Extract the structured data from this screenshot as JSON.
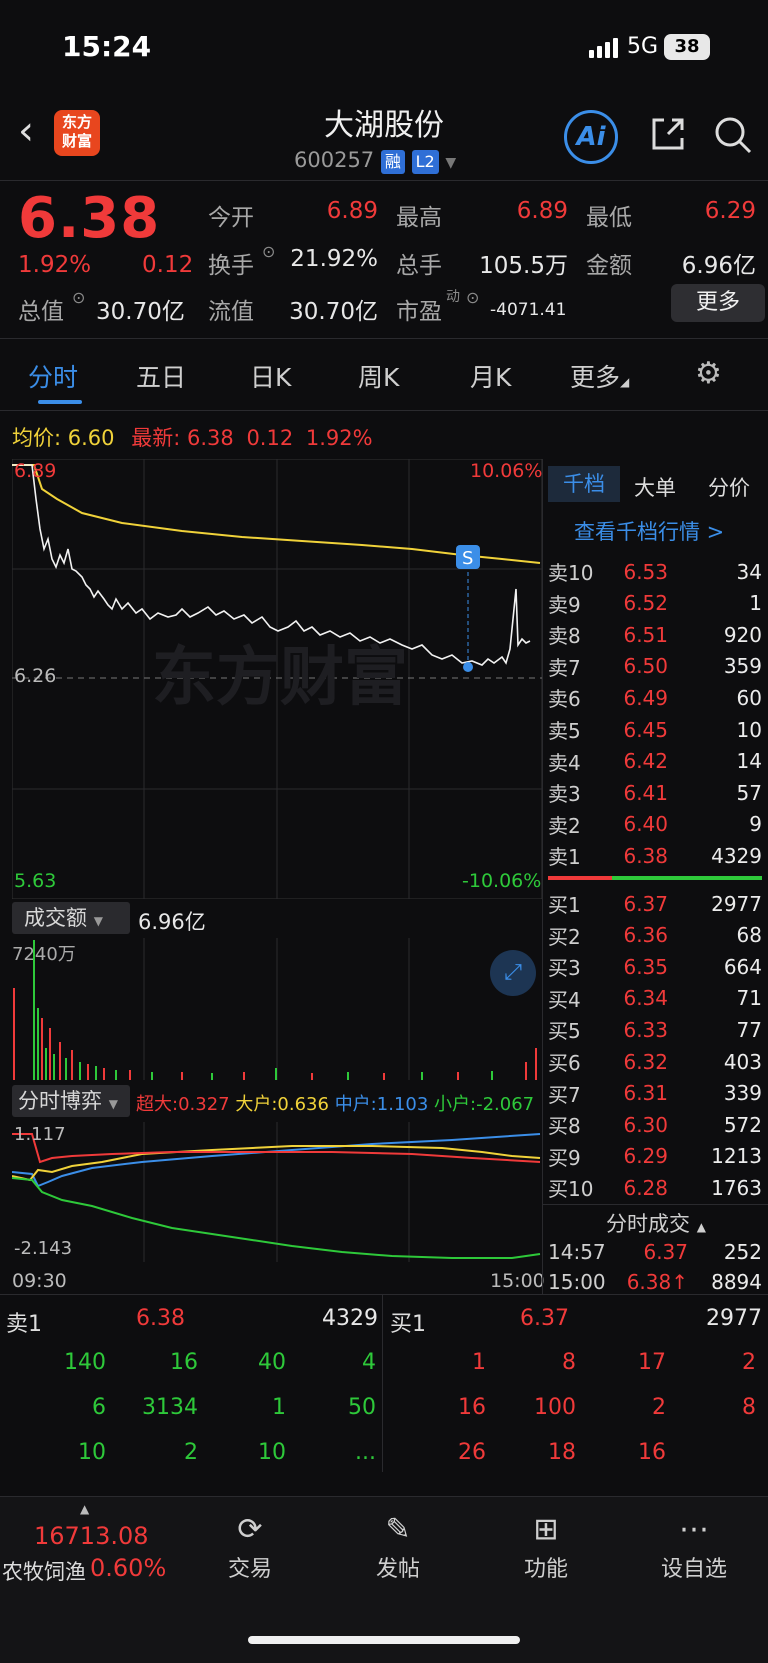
{
  "status": {
    "time": "15:24",
    "network": "5G",
    "battery": "38"
  },
  "header": {
    "title": "大湖股份",
    "code": "600257",
    "tag_margin": "融",
    "tag_level": "L2",
    "logo_text": "东方财富",
    "ai_label": "Ai"
  },
  "quote": {
    "price": "6.38",
    "change_pct": "1.92%",
    "change": "0.12",
    "open_label": "今开",
    "open": "6.89",
    "high_label": "最高",
    "high": "6.89",
    "low_label": "最低",
    "low": "6.29",
    "turnover_label": "换手",
    "turnover": "21.92%",
    "volume_label": "总手",
    "volume": "105.5万",
    "amount_label": "金额",
    "amount": "6.96亿",
    "mktcap_label": "总值",
    "mktcap": "30.70亿",
    "float_label": "流值",
    "float_cap": "30.70亿",
    "pe_label": "市盈",
    "pe_sup": "动",
    "pe": "-4071.41",
    "more_button": "更多"
  },
  "tabs": [
    "分时",
    "五日",
    "日K",
    "周K",
    "月K",
    "更多"
  ],
  "chart_info": {
    "avg_label": "均价:",
    "avg": "6.60",
    "latest_label": "最新:",
    "latest": "6.38",
    "latest_chg": "0.12",
    "latest_pct": "1.92%"
  },
  "chart_axes": {
    "top_price": "6.89",
    "top_pct": "10.06%",
    "prev_close": "6.26",
    "bottom_price": "5.63",
    "bottom_pct": "-10.06%",
    "marker": "S",
    "watermark": "东方财富"
  },
  "volume_panel": {
    "label": "成交额",
    "value": "6.96亿",
    "max": "7240万"
  },
  "flow_panel": {
    "label": "分时博弈",
    "super_label": "超大:",
    "super": "0.327",
    "large_label": "大户:",
    "large": "0.636",
    "mid_label": "中户:",
    "mid": "1.103",
    "small_label": "小户:",
    "small": "-2.067",
    "top": "1.117",
    "bottom": "-2.143",
    "start_time": "09:30",
    "end_time": "15:00"
  },
  "orderbook": {
    "tabs": [
      "千档",
      "大单",
      "分价"
    ],
    "link": "查看千档行情 >",
    "asks": [
      {
        "name": "卖10",
        "price": "6.53",
        "vol": "34"
      },
      {
        "name": "卖9",
        "price": "6.52",
        "vol": "1"
      },
      {
        "name": "卖8",
        "price": "6.51",
        "vol": "920"
      },
      {
        "name": "卖7",
        "price": "6.50",
        "vol": "359"
      },
      {
        "name": "卖6",
        "price": "6.49",
        "vol": "60"
      },
      {
        "name": "卖5",
        "price": "6.45",
        "vol": "10"
      },
      {
        "name": "卖4",
        "price": "6.42",
        "vol": "14"
      },
      {
        "name": "卖3",
        "price": "6.41",
        "vol": "57"
      },
      {
        "name": "卖2",
        "price": "6.40",
        "vol": "9"
      },
      {
        "name": "卖1",
        "price": "6.38",
        "vol": "4329"
      }
    ],
    "bids": [
      {
        "name": "买1",
        "price": "6.37",
        "vol": "2977"
      },
      {
        "name": "买2",
        "price": "6.36",
        "vol": "68"
      },
      {
        "name": "买3",
        "price": "6.35",
        "vol": "664"
      },
      {
        "name": "买4",
        "price": "6.34",
        "vol": "71"
      },
      {
        "name": "买5",
        "price": "6.33",
        "vol": "77"
      },
      {
        "name": "买6",
        "price": "6.32",
        "vol": "403"
      },
      {
        "name": "买7",
        "price": "6.31",
        "vol": "339"
      },
      {
        "name": "买8",
        "price": "6.30",
        "vol": "572"
      },
      {
        "name": "买9",
        "price": "6.29",
        "vol": "1213"
      },
      {
        "name": "买10",
        "price": "6.28",
        "vol": "1763"
      }
    ],
    "ticks_label": "分时成交",
    "ticks": [
      {
        "time": "14:57",
        "price": "6.37",
        "vol": "252"
      },
      {
        "time": "15:00",
        "price": "6.38↑",
        "vol": "8894"
      }
    ]
  },
  "queue": {
    "sell_label": "卖1",
    "sell_price": "6.38",
    "sell_total": "4329",
    "buy_label": "买1",
    "buy_price": "6.37",
    "buy_total": "2977",
    "sell_rows": [
      [
        "140",
        "16",
        "40",
        "4"
      ],
      [
        "6",
        "3134",
        "1",
        "50"
      ],
      [
        "10",
        "2",
        "10",
        "..."
      ]
    ],
    "buy_rows": [
      [
        "1",
        "8",
        "17",
        "2"
      ],
      [
        "16",
        "100",
        "2",
        "8"
      ],
      [
        "26",
        "18",
        "16"
      ]
    ]
  },
  "bottom_nav": {
    "index_value": "16713.08",
    "index_name": "农牧饲渔",
    "index_pct": "0.60%",
    "items": [
      "交易",
      "发帖",
      "功能",
      "设自选"
    ]
  },
  "colors": {
    "up": "#f03a3a",
    "down": "#2ec93a",
    "avg_line": "#f0d23a",
    "accent": "#3b8ee8"
  }
}
